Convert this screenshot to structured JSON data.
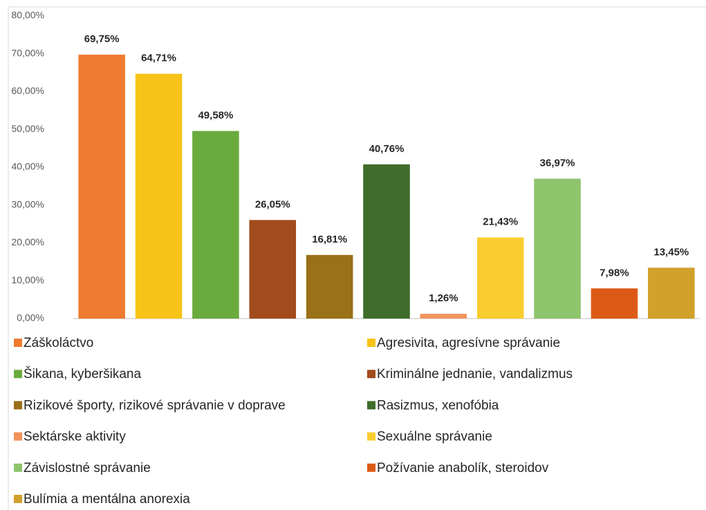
{
  "chart_data": {
    "type": "bar",
    "categories": [
      "Záškoláctvo",
      "Agresivita, agresívne správanie",
      "Šikana, kyberšikana",
      "Kriminálne jednanie, vandalizmus",
      "Rizikové športy, rizikové správanie v doprave",
      "Rasizmus, xenofóbia",
      "Sektárske aktivity",
      "Sexuálne správanie",
      "Závislostné správanie",
      "Požívanie anabolík, steroidov",
      "Bulímia a mentálna anorexia"
    ],
    "values": [
      69.75,
      64.71,
      49.58,
      26.05,
      16.81,
      40.76,
      1.26,
      21.43,
      36.97,
      7.98,
      13.45
    ],
    "value_labels": [
      "69,75%",
      "64,71%",
      "49,58%",
      "26,05%",
      "16,81%",
      "40,76%",
      "1,26%",
      "21,43%",
      "36,97%",
      "7,98%",
      "13,45%"
    ],
    "colors": [
      "#ef7b30",
      "#f7c318",
      "#6aab3e",
      "#a24b1c",
      "#9a7018",
      "#3f6c2b",
      "#f2935c",
      "#f9cd2e",
      "#8ec46c",
      "#dd5a16",
      "#d2a12b"
    ],
    "ylim": [
      0,
      80
    ],
    "yticks": [
      {
        "value": 0,
        "label": "0,00%"
      },
      {
        "value": 10,
        "label": "10,00%"
      },
      {
        "value": 20,
        "label": "20,00%"
      },
      {
        "value": 30,
        "label": "30,00%"
      },
      {
        "value": 40,
        "label": "40,00%"
      },
      {
        "value": 50,
        "label": "50,00%"
      },
      {
        "value": 60,
        "label": "60,00%"
      },
      {
        "value": 70,
        "label": "70,00%"
      },
      {
        "value": 80,
        "label": "80,00%"
      }
    ],
    "grid": false,
    "legend": "bottom"
  }
}
